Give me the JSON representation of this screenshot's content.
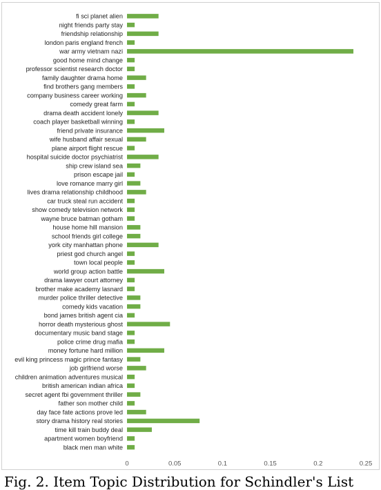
{
  "chart_data": {
    "type": "bar",
    "orientation": "horizontal",
    "categories": [
      "fi sci planet alien",
      "night friends party stay",
      "friendship relationship",
      "london paris england french",
      "war army vietnam nazi",
      "good home mind change",
      "professor scientist research doctor",
      "family daughter drama home",
      "find brothers gang members",
      "company business career working",
      "comedy great farm",
      "drama death accident lonely",
      "coach player basketball winning",
      "friend private insurance",
      "wife husband affair sexual",
      "plane airport flight rescue",
      "hospital suicide doctor psychiatrist",
      "ship crew island sea",
      "prison escape jail",
      "love romance marry girl",
      "lives drama relationship childhood",
      "car truck steal run accident",
      "show comedy television network",
      "wayne bruce batman gotham",
      "house home hill mansion",
      "school friends girl college",
      "york city manhattan phone",
      "priest god church angel",
      "town local people",
      "world group action battle",
      "drama lawyer court attorney",
      "brother make academy lasnard",
      "murder police thriller detective",
      "comedy kids vacation",
      "bond james british agent cia",
      "horror death mysterious ghost",
      "documentary music band stage",
      "police crime drug mafia",
      "money fortune hard million",
      "evil king princess magic prince fantasy",
      "job girlfriend worse",
      "children animation adventures musical",
      "british american indian africa",
      "secret agent fbi government thriller",
      "father son mother child",
      "day face fate actions prove led",
      "story drama history real stories",
      "time kill train buddy deal",
      "apartment women boyfriend",
      "black men man white"
    ],
    "values": [
      0.033,
      0.008,
      0.033,
      0.008,
      0.237,
      0.008,
      0.008,
      0.02,
      0.008,
      0.02,
      0.008,
      0.033,
      0.008,
      0.039,
      0.02,
      0.008,
      0.033,
      0.014,
      0.008,
      0.014,
      0.02,
      0.008,
      0.008,
      0.008,
      0.014,
      0.014,
      0.033,
      0.008,
      0.008,
      0.039,
      0.008,
      0.008,
      0.014,
      0.014,
      0.008,
      0.045,
      0.008,
      0.008,
      0.039,
      0.014,
      0.02,
      0.008,
      0.008,
      0.014,
      0.008,
      0.02,
      0.076,
      0.026,
      0.008,
      0.008
    ],
    "xticks": [
      "0",
      "0.05",
      "0.1",
      "0.15",
      "0.2",
      "0.25"
    ],
    "xlim": [
      0,
      0.25
    ],
    "grid": false,
    "legend": "none",
    "color": "#70ad47"
  },
  "caption": "Fig. 2. Item Topic Distribution for Schindler's List"
}
